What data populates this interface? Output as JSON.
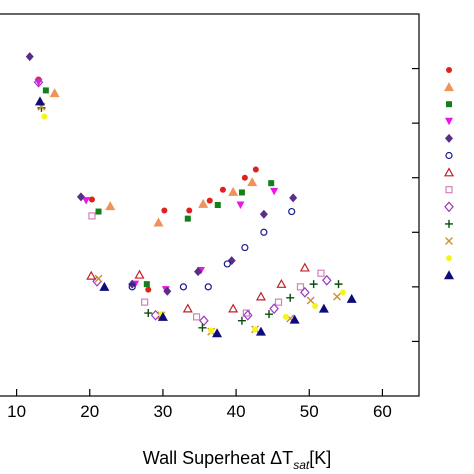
{
  "chart_data": {
    "type": "scatter",
    "title": "",
    "xlabel": "Wall Superheat ΔT",
    "xlabel_subscript": "sat",
    "xlabel_unit": "[K]",
    "ylabel": "",
    "xlim": [
      5,
      65
    ],
    "ylim": [
      0,
      7
    ],
    "x_ticks": [
      10,
      20,
      30,
      40,
      50,
      60
    ],
    "y_ticks": [
      1,
      2,
      3,
      4,
      5,
      6
    ],
    "y_tick_labels_visible": false,
    "grid": false,
    "legend": {
      "placement": "right",
      "labels_visible": false
    },
    "series": [
      {
        "marker": "circle",
        "color": "#e0201e",
        "points": [
          [
            13,
            5.8
          ],
          [
            20.3,
            3.6
          ],
          [
            28,
            1.95
          ],
          [
            30.2,
            3.4
          ],
          [
            33.6,
            3.4
          ],
          [
            36.4,
            3.58
          ],
          [
            38.2,
            3.78
          ],
          [
            41.2,
            4.0
          ],
          [
            42.7,
            4.15
          ]
        ]
      },
      {
        "marker": "triangle-up",
        "color": "#f0935a",
        "points": [
          [
            15.2,
            5.55
          ],
          [
            22.8,
            3.48
          ],
          [
            29.4,
            3.18
          ],
          [
            35.5,
            3.52
          ],
          [
            39.6,
            3.74
          ],
          [
            42.2,
            3.92
          ]
        ]
      },
      {
        "marker": "square",
        "color": "#14801a",
        "points": [
          [
            14,
            5.6
          ],
          [
            21.2,
            3.38
          ],
          [
            27.8,
            2.05
          ],
          [
            33.4,
            3.25
          ],
          [
            37.5,
            3.5
          ],
          [
            40.8,
            3.73
          ],
          [
            44.8,
            3.9
          ]
        ]
      },
      {
        "marker": "triangle-down",
        "color": "#e817e8",
        "points": [
          [
            13,
            5.75
          ],
          [
            19.5,
            3.58
          ],
          [
            26.2,
            2.05
          ],
          [
            30.4,
            1.95
          ],
          [
            35.2,
            2.3
          ],
          [
            40.6,
            3.5
          ],
          [
            45.2,
            3.75
          ]
        ]
      },
      {
        "marker": "diamond",
        "color": "#5a2d86",
        "points": [
          [
            11.8,
            6.22
          ],
          [
            18.8,
            3.65
          ],
          [
            25.8,
            2.05
          ],
          [
            30.6,
            1.92
          ],
          [
            34.8,
            2.28
          ],
          [
            39.4,
            2.48
          ],
          [
            43.8,
            3.33
          ],
          [
            47.8,
            3.63
          ]
        ]
      },
      {
        "marker": "circle-open",
        "color": "#1a1a8c",
        "points": [
          [
            25.8,
            2.0
          ],
          [
            32.8,
            2.0
          ],
          [
            36.2,
            2.0
          ],
          [
            38.8,
            2.42
          ],
          [
            41.2,
            2.72
          ],
          [
            43.8,
            3.0
          ],
          [
            47.6,
            3.38
          ]
        ]
      },
      {
        "marker": "triangle-up-open",
        "color": "#c0202a",
        "points": [
          [
            20.2,
            2.2
          ],
          [
            26.8,
            2.22
          ],
          [
            33.4,
            1.6
          ],
          [
            39.6,
            1.6
          ],
          [
            43.4,
            1.82
          ],
          [
            46.2,
            2.05
          ],
          [
            49.4,
            2.35
          ]
        ]
      },
      {
        "marker": "square-open",
        "color": "#d67fb8",
        "points": [
          [
            20.3,
            3.3
          ],
          [
            27.5,
            1.72
          ],
          [
            34.6,
            1.45
          ],
          [
            41.4,
            1.52
          ],
          [
            45.8,
            1.72
          ],
          [
            48.8,
            2.0
          ],
          [
            51.6,
            2.25
          ]
        ]
      },
      {
        "marker": "diamond-open",
        "color": "#9a3bbf",
        "points": [
          [
            13,
            5.75
          ],
          [
            21,
            2.1
          ],
          [
            29,
            1.48
          ],
          [
            35.6,
            1.38
          ],
          [
            41.6,
            1.48
          ],
          [
            45.2,
            1.6
          ],
          [
            49.4,
            1.9
          ],
          [
            52.4,
            2.12
          ]
        ]
      },
      {
        "marker": "plus",
        "color": "#0a4d0a",
        "points": [
          [
            13.4,
            5.28
          ],
          [
            28,
            1.52
          ],
          [
            35.4,
            1.25
          ],
          [
            40.8,
            1.38
          ],
          [
            44.5,
            1.5
          ],
          [
            47.4,
            1.8
          ],
          [
            50.6,
            2.05
          ],
          [
            54,
            2.05
          ]
        ]
      },
      {
        "marker": "x",
        "color": "#cf8f30",
        "points": [
          [
            13.4,
            5.3
          ],
          [
            21.2,
            2.15
          ],
          [
            29.8,
            1.48
          ],
          [
            36.6,
            1.18
          ],
          [
            42.6,
            1.22
          ],
          [
            47.4,
            1.42
          ],
          [
            50.2,
            1.75
          ],
          [
            53.8,
            1.82
          ]
        ]
      },
      {
        "marker": "circle-filled",
        "color": "#f5f51b",
        "points": [
          [
            13.8,
            5.12
          ],
          [
            29.8,
            1.5
          ],
          [
            36.6,
            1.2
          ],
          [
            42.6,
            1.22
          ],
          [
            46.8,
            1.45
          ],
          [
            50.8,
            1.65
          ],
          [
            54.6,
            1.9
          ]
        ]
      },
      {
        "marker": "triangle-up",
        "color": "#0c0c7a",
        "points": [
          [
            13.2,
            5.4
          ],
          [
            22,
            2.0
          ],
          [
            30,
            1.45
          ],
          [
            37.4,
            1.15
          ],
          [
            43.4,
            1.18
          ],
          [
            48,
            1.4
          ],
          [
            52,
            1.6
          ],
          [
            55.8,
            1.78
          ]
        ]
      }
    ]
  }
}
